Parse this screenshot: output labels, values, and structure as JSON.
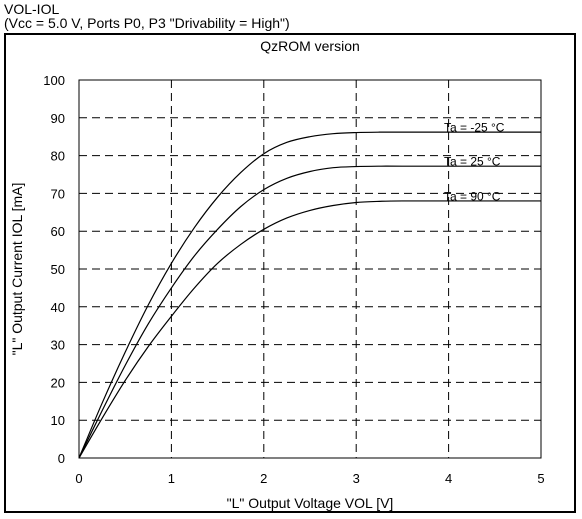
{
  "header": {
    "title": "VOL-IOL",
    "conditions": "(Vcc = 5.0 V, Ports P0, P3 \"Drivability = High\")"
  },
  "chart_data": {
    "type": "line",
    "title": "QzROM version",
    "xlabel": "\"L\" Output Voltage VOL [V]",
    "ylabel": "\"L\" Output Current IOL [mA]",
    "xlim": [
      0,
      5
    ],
    "ylim": [
      0,
      100
    ],
    "x_ticks": [
      0,
      1,
      2,
      3,
      4,
      5
    ],
    "y_ticks": [
      0,
      10,
      20,
      30,
      40,
      50,
      60,
      70,
      80,
      90,
      100
    ],
    "grid": true,
    "grid_style": "dashed",
    "line_color": "#000000",
    "series": [
      {
        "name": "Ta = -25 °C",
        "x": [
          0,
          0.25,
          0.5,
          0.75,
          1.0,
          1.25,
          1.5,
          1.75,
          2.0,
          2.25,
          2.5,
          2.75,
          3.0,
          3.25,
          3.5,
          4.0,
          4.5,
          5.0
        ],
        "y": [
          0,
          14.5,
          28,
          40.5,
          51.5,
          61,
          69,
          75.5,
          80.5,
          83.5,
          85,
          85.8,
          86.1,
          86.2,
          86.2,
          86.2,
          86.2,
          86.2
        ]
      },
      {
        "name": "Ta = 25 °C",
        "x": [
          0,
          0.25,
          0.5,
          0.75,
          1.0,
          1.25,
          1.5,
          1.75,
          2.0,
          2.25,
          2.5,
          2.75,
          3.0,
          3.25,
          3.5,
          4.0,
          4.5,
          5.0
        ],
        "y": [
          0,
          12.5,
          24.5,
          35.5,
          45,
          53.5,
          60.5,
          66.5,
          71,
          74,
          75.8,
          76.8,
          77.1,
          77.2,
          77.2,
          77.2,
          77.2,
          77.2
        ]
      },
      {
        "name": "Ta = 90 °C",
        "x": [
          0,
          0.25,
          0.5,
          0.75,
          1.0,
          1.25,
          1.5,
          1.75,
          2.0,
          2.25,
          2.5,
          2.75,
          3.0,
          3.25,
          3.5,
          4.0,
          4.5,
          5.0
        ],
        "y": [
          0,
          10.5,
          20.5,
          29.5,
          37.5,
          45,
          51.5,
          56.5,
          60.5,
          63.5,
          65.5,
          66.8,
          67.6,
          67.9,
          68.0,
          68.0,
          68.0,
          68.0
        ]
      }
    ]
  }
}
